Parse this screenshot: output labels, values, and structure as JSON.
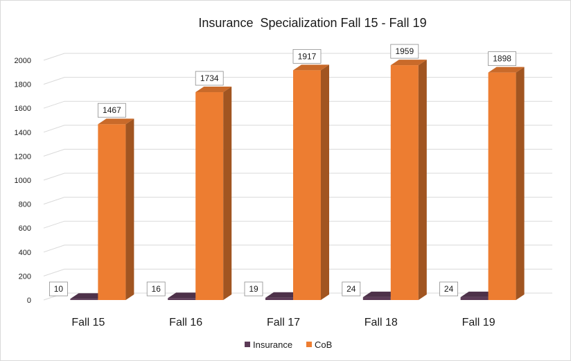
{
  "chart_data": {
    "type": "bar",
    "title": "Insurance  Specialization Fall 15 - Fall 19",
    "categories": [
      "Fall 15",
      "Fall 16",
      "Fall 17",
      "Fall 18",
      "Fall 19"
    ],
    "series": [
      {
        "name": "Insurance",
        "values": [
          10,
          16,
          19,
          24,
          24
        ],
        "color": "#5b3a56"
      },
      {
        "name": "CoB",
        "values": [
          1467,
          1734,
          1917,
          1959,
          1898
        ],
        "color": "#ed7d31"
      }
    ],
    "ylim": [
      0,
      2000
    ],
    "yticks": [
      "0",
      "200",
      "400",
      "600",
      "800",
      "1000",
      "1200",
      "1400",
      "1600",
      "1800",
      "2000"
    ],
    "grid": true,
    "legend": "bottom",
    "style": "3d-column"
  }
}
